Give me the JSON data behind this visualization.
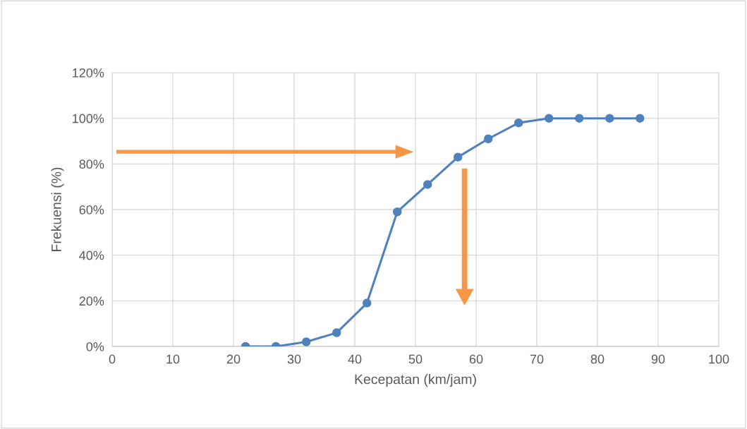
{
  "chart_data": {
    "type": "line",
    "xlabel": "Kecepatan (km/jam)",
    "ylabel": "Frekuensi (%)",
    "x": [
      22,
      27,
      32,
      37,
      42,
      47,
      52,
      57,
      62,
      67,
      72,
      77,
      82,
      87
    ],
    "series": [
      {
        "color": "#4f81bd",
        "values": [
          0,
          0,
          2,
          6,
          19,
          59,
          71,
          83,
          91,
          98,
          100,
          100,
          100,
          100
        ]
      }
    ],
    "xlim": [
      0,
      100
    ],
    "xticks": [
      0,
      10,
      20,
      30,
      40,
      50,
      60,
      70,
      80,
      90,
      100
    ],
    "ylim": [
      0,
      120
    ],
    "yticks": [
      {
        "value": 0,
        "label": "0%"
      },
      {
        "value": 20,
        "label": "20%"
      },
      {
        "value": 40,
        "label": "40%"
      },
      {
        "value": 60,
        "label": "60%"
      },
      {
        "value": 80,
        "label": "80%"
      },
      {
        "value": 100,
        "label": "100%"
      },
      {
        "value": 120,
        "label": "120%"
      }
    ],
    "grid": true,
    "marker": "circle",
    "line_style": "solid"
  }
}
